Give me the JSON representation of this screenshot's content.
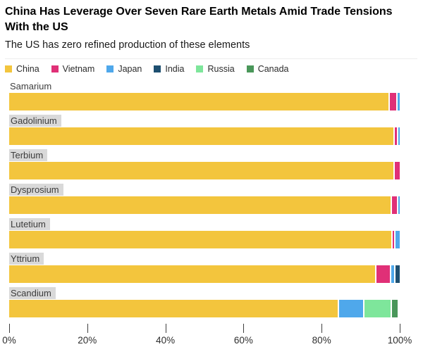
{
  "header": {
    "title": "China Has Leverage Over Seven Rare Earth Metals Amid Trade Tensions With the US",
    "subtitle": "The US has zero refined production of these elements"
  },
  "legend": {
    "items": [
      {
        "label": "China",
        "color": "#F3C53D"
      },
      {
        "label": "Vietnam",
        "color": "#E03077"
      },
      {
        "label": "Japan",
        "color": "#4FA8EB"
      },
      {
        "label": "India",
        "color": "#1E4F70"
      },
      {
        "label": "Russia",
        "color": "#7EE69B"
      },
      {
        "label": "Canada",
        "color": "#4A975A"
      }
    ]
  },
  "chart_data": {
    "type": "bar",
    "orientation": "horizontal",
    "stacked": true,
    "unit": "% of refined production",
    "title": "China Has Leverage Over Seven Rare Earth Metals Amid Trade Tensions With the US",
    "subtitle": "The US has zero refined production of these elements",
    "categories": [
      "Samarium",
      "Gadolinium",
      "Terbium",
      "Dysprosium",
      "Lutetium",
      "Yttrium",
      "Scandium"
    ],
    "series": [
      {
        "name": "China",
        "color": "#F3C53D",
        "values": [
          97.4,
          98.8,
          98.8,
          98.0,
          98.2,
          94.0,
          84.5
        ]
      },
      {
        "name": "Vietnam",
        "color": "#E03077",
        "values": [
          2.1,
          0.8,
          1.2,
          1.6,
          0.8,
          3.9,
          0
        ]
      },
      {
        "name": "Japan",
        "color": "#4FA8EB",
        "values": [
          0.5,
          0.4,
          0,
          0.4,
          1.0,
          1.0,
          6.5
        ]
      },
      {
        "name": "India",
        "color": "#1E4F70",
        "values": [
          0,
          0,
          0,
          0,
          0,
          1.1,
          0
        ]
      },
      {
        "name": "Russia",
        "color": "#7EE69B",
        "values": [
          0,
          0,
          0,
          0,
          0,
          0,
          7.0
        ]
      },
      {
        "name": "Canada",
        "color": "#4A975A",
        "values": [
          0,
          0,
          0,
          0,
          0,
          0,
          1.5
        ]
      }
    ],
    "x_ticks": [
      "0%",
      "20%",
      "40%",
      "60%",
      "80%",
      "100%"
    ],
    "xlim": [
      0,
      100
    ],
    "grid": false,
    "legend_position": "top",
    "category_label_highlighted": [
      false,
      true,
      true,
      true,
      true,
      true,
      true
    ]
  }
}
